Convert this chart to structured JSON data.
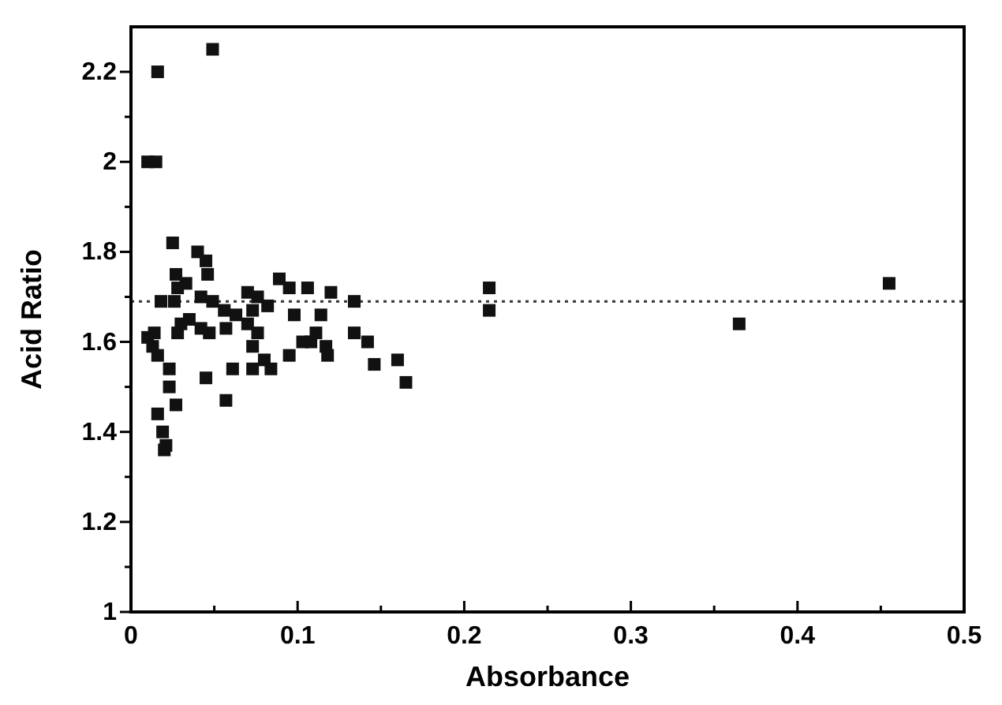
{
  "chart_data": {
    "type": "scatter",
    "xlabel": "Absorbance",
    "ylabel": "Acid Ratio",
    "marker": "square",
    "xlim": [
      0,
      0.5
    ],
    "ylim": [
      1,
      2.3
    ],
    "xticks": [
      0,
      {
        "value": 0.05,
        "label": null
      },
      0.1,
      {
        "value": 0.15,
        "label": null
      },
      0.2,
      {
        "value": 0.25,
        "label": null
      },
      0.3,
      {
        "value": 0.35,
        "label": null
      },
      0.4,
      {
        "value": 0.45,
        "label": null
      },
      0.5
    ],
    "yticks": [
      1,
      {
        "value": 1.1,
        "label": null
      },
      1.2,
      {
        "value": 1.3,
        "label": null
      },
      1.4,
      {
        "value": 1.5,
        "label": null
      },
      1.6,
      {
        "value": 1.7,
        "label": null
      },
      1.8,
      {
        "value": 1.9,
        "label": null
      },
      2,
      {
        "value": 2.1,
        "label": null
      },
      2.2
    ],
    "ref_lines": [
      {
        "axis": "y",
        "value": 1.69,
        "line_style": "dotted",
        "color": "#333333"
      }
    ],
    "series": [
      {
        "color": "#111111",
        "x": [
          0.016,
          0.049,
          0.01,
          0.015,
          0.215,
          0.215,
          0.365,
          0.455,
          0.025,
          0.04,
          0.045,
          0.027,
          0.046,
          0.033,
          0.028,
          0.018,
          0.026,
          0.042,
          0.049,
          0.056,
          0.07,
          0.076,
          0.089,
          0.095,
          0.106,
          0.12,
          0.134,
          0.098,
          0.114,
          0.073,
          0.063,
          0.082,
          0.035,
          0.028,
          0.042,
          0.047,
          0.057,
          0.07,
          0.076,
          0.073,
          0.08,
          0.111,
          0.108,
          0.103,
          0.117,
          0.118,
          0.095,
          0.084,
          0.073,
          0.061,
          0.045,
          0.057,
          0.134,
          0.142,
          0.146,
          0.16,
          0.165,
          0.01,
          0.014,
          0.013,
          0.016,
          0.023,
          0.023,
          0.027,
          0.016,
          0.019,
          0.021,
          0.02,
          0.03
        ],
        "values": [
          2.2,
          2.25,
          2.0,
          2.0,
          1.72,
          1.67,
          1.64,
          1.73,
          1.82,
          1.8,
          1.78,
          1.75,
          1.75,
          1.73,
          1.72,
          1.69,
          1.69,
          1.7,
          1.69,
          1.67,
          1.71,
          1.7,
          1.74,
          1.72,
          1.72,
          1.71,
          1.69,
          1.66,
          1.66,
          1.67,
          1.66,
          1.68,
          1.65,
          1.62,
          1.63,
          1.62,
          1.63,
          1.64,
          1.62,
          1.59,
          1.56,
          1.62,
          1.6,
          1.6,
          1.59,
          1.57,
          1.57,
          1.54,
          1.54,
          1.54,
          1.52,
          1.47,
          1.62,
          1.6,
          1.55,
          1.56,
          1.51,
          1.61,
          1.62,
          1.59,
          1.57,
          1.54,
          1.5,
          1.46,
          1.44,
          1.4,
          1.37,
          1.36,
          1.64
        ]
      }
    ]
  }
}
